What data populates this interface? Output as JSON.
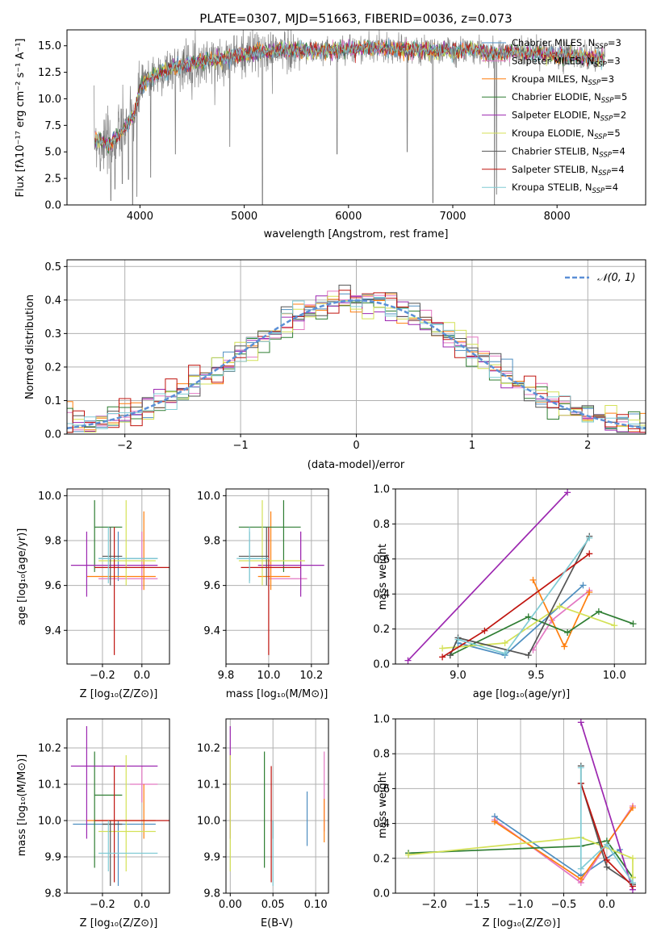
{
  "colors": {
    "chabrier_miles": "#4d8ec0",
    "salpeter_miles": "#e377c2",
    "kroupa_miles": "#ff7f0e",
    "chabrier_elodie": "#2e7d32",
    "salpeter_elodie": "#9c27b0",
    "kroupa_elodie": "#d4e157",
    "chabrier_stelib": "#555555",
    "salpeter_stelib": "#c0140f",
    "kroupa_stelib": "#80cbd4",
    "gaussian": "#5b8fd6",
    "data": "#808080",
    "grid": "#b0b0b0"
  },
  "chart_data": [
    {
      "id": "spectrum",
      "type": "line",
      "title": "PLATE=0307, MJD=51663, FIBERID=0036, z=0.073",
      "xlabel": "wavelength [Angstrom, rest frame]",
      "ylabel": "Flux [fλ10⁻¹⁷ erg cm⁻² s⁻¹ A⁻¹]",
      "xlim": [
        3300,
        8850
      ],
      "ylim": [
        0,
        16.5
      ],
      "xticks": [
        4000,
        5000,
        6000,
        7000,
        8000
      ],
      "yticks": [
        0.0,
        2.5,
        5.0,
        7.5,
        10.0,
        12.5,
        15.0
      ],
      "grid": false,
      "legend": "right",
      "series": [
        {
          "name": "Chabrier MILES, N_SSP=3"
        },
        {
          "name": "Salpeter MILES, N_SSP=3"
        },
        {
          "name": "Kroupa MILES, N_SSP=3"
        },
        {
          "name": "Chabrier ELODIE, N_SSP=5"
        },
        {
          "name": "Salpeter ELODIE, N_SSP=2"
        },
        {
          "name": "Kroupa ELODIE, N_SSP=5"
        },
        {
          "name": "Chabrier STELIB, N_SSP=4"
        },
        {
          "name": "Salpeter STELIB, N_SSP=4"
        },
        {
          "name": "Kroupa STELIB, N_SSP=4"
        }
      ],
      "continuum": [
        [
          3600,
          6.2
        ],
        [
          3700,
          5.5
        ],
        [
          3850,
          7.2
        ],
        [
          3950,
          8.6
        ],
        [
          4000,
          11.0
        ],
        [
          4100,
          12.0
        ],
        [
          4300,
          12.9
        ],
        [
          4500,
          13.4
        ],
        [
          4800,
          13.8
        ],
        [
          5100,
          14.4
        ],
        [
          5400,
          14.6
        ],
        [
          5700,
          14.5
        ],
        [
          6000,
          14.7
        ],
        [
          6300,
          14.8
        ],
        [
          6600,
          14.6
        ],
        [
          6900,
          14.5
        ],
        [
          7200,
          14.6
        ],
        [
          7400,
          14.2
        ],
        [
          7600,
          14.4
        ],
        [
          7900,
          14.2
        ],
        [
          8200,
          14.0
        ],
        [
          8450,
          13.8
        ]
      ],
      "features": [
        [
          3620,
          3.2
        ],
        [
          3720,
          0.4
        ],
        [
          3760,
          1.5
        ],
        [
          3830,
          2.0
        ],
        [
          3890,
          2.4
        ],
        [
          3930,
          0.0
        ],
        [
          3970,
          0.8
        ],
        [
          4102,
          2.6
        ],
        [
          4340,
          4.8
        ],
        [
          4861,
          5.5
        ],
        [
          5175,
          0.0
        ],
        [
          5890,
          4.8
        ],
        [
          6563,
          5.0
        ],
        [
          6810,
          0.2
        ],
        [
          7400,
          0.0
        ],
        [
          7420,
          1.0
        ]
      ]
    },
    {
      "id": "residuals",
      "type": "histogram",
      "xlabel": "(data-model)/error",
      "ylabel": "Normed distribution",
      "xlim": [
        -2.5,
        2.5
      ],
      "ylim": [
        0,
        0.52
      ],
      "xticks": [
        -2,
        -1,
        0,
        1,
        2
      ],
      "yticks": [
        0.0,
        0.1,
        0.2,
        0.3,
        0.4,
        0.5
      ],
      "grid": true,
      "legend": "top-right",
      "gaussian_label": "𝒩(0, 1)"
    },
    {
      "id": "age-vs-Z",
      "type": "errorbar",
      "xlabel": "Z [log₁₀(Z/Z⊙)]",
      "ylabel": "age  [log₁₀(age/yr)]",
      "xlim": [
        -0.38,
        0.14
      ],
      "ylim": [
        9.25,
        10.03
      ],
      "xticks": [
        -0.2,
        0.0
      ],
      "yticks": [
        9.4,
        9.6,
        9.8,
        10.0
      ],
      "points": [
        {
          "c": "chabrier_miles",
          "x": -0.12,
          "y": 9.72,
          "xl": -0.22,
          "xh": 0.08,
          "yl": 9.62,
          "yh": 9.84
        },
        {
          "c": "salpeter_miles",
          "x": 0.0,
          "y": 9.63,
          "xl": -0.22,
          "xh": 0.08,
          "yl": 9.58,
          "yh": 9.84
        },
        {
          "c": "kroupa_miles",
          "x": 0.01,
          "y": 9.64,
          "xl": -0.28,
          "xh": 0.07,
          "yl": 9.58,
          "yh": 9.93
        },
        {
          "c": "chabrier_elodie",
          "x": -0.24,
          "y": 9.86,
          "xl": -0.24,
          "xh": -0.1,
          "yl": 9.66,
          "yh": 9.98
        },
        {
          "c": "salpeter_elodie",
          "x": -0.28,
          "y": 9.69,
          "xl": -0.36,
          "xh": 0.08,
          "yl": 9.55,
          "yh": 9.84
        },
        {
          "c": "kroupa_elodie",
          "x": -0.08,
          "y": 9.71,
          "xl": -0.22,
          "xh": 0.07,
          "yl": 9.6,
          "yh": 9.98
        },
        {
          "c": "chabrier_stelib",
          "x": -0.16,
          "y": 9.73,
          "xl": -0.2,
          "xh": -0.1,
          "yl": 9.6,
          "yh": 9.86
        },
        {
          "c": "salpeter_stelib",
          "x": -0.14,
          "y": 9.68,
          "xl": -0.24,
          "xh": 0.14,
          "yl": 9.29,
          "yh": 9.86
        },
        {
          "c": "kroupa_stelib",
          "x": -0.17,
          "y": 9.72,
          "xl": -0.22,
          "xh": 0.08,
          "yl": 9.61,
          "yh": 9.86
        }
      ]
    },
    {
      "id": "age-vs-mass",
      "type": "errorbar",
      "xlabel": "mass [log₁₀(M/M⊙)]",
      "ylabel": "",
      "xlim": [
        9.8,
        10.28
      ],
      "ylim": [
        9.25,
        10.03
      ],
      "xticks": [
        9.8,
        10.0,
        10.2
      ],
      "yticks": [
        9.4,
        9.6,
        9.8,
        10.0
      ],
      "points": [
        {
          "c": "chabrier_miles",
          "x": 9.91,
          "y": 9.72,
          "xl": 9.86,
          "xh": 10.0,
          "yl": 9.62,
          "yh": 9.84
        },
        {
          "c": "salpeter_miles",
          "x": 10.15,
          "y": 9.63,
          "xl": 10.0,
          "xh": 10.18,
          "yl": 9.58,
          "yh": 9.84
        },
        {
          "c": "kroupa_miles",
          "x": 10.01,
          "y": 9.64,
          "xl": 9.95,
          "xh": 10.1,
          "yl": 9.58,
          "yh": 9.93
        },
        {
          "c": "chabrier_elodie",
          "x": 10.07,
          "y": 9.86,
          "xl": 9.86,
          "xh": 10.15,
          "yl": 9.66,
          "yh": 9.98
        },
        {
          "c": "salpeter_elodie",
          "x": 10.15,
          "y": 9.69,
          "xl": 9.95,
          "xh": 10.26,
          "yl": 9.55,
          "yh": 9.84
        },
        {
          "c": "kroupa_elodie",
          "x": 9.97,
          "y": 9.71,
          "xl": 9.86,
          "xh": 10.17,
          "yl": 9.6,
          "yh": 9.98
        },
        {
          "c": "chabrier_stelib",
          "x": 9.99,
          "y": 9.73,
          "xl": 9.86,
          "xh": 10.0,
          "yl": 9.6,
          "yh": 9.86
        },
        {
          "c": "salpeter_stelib",
          "x": 10.0,
          "y": 9.68,
          "xl": 9.87,
          "xh": 10.15,
          "yl": 9.29,
          "yh": 9.86
        },
        {
          "c": "kroupa_stelib",
          "x": 9.91,
          "y": 9.72,
          "xl": 9.85,
          "xh": 10.0,
          "yl": 9.61,
          "yh": 9.86
        }
      ]
    },
    {
      "id": "weight-vs-age",
      "type": "line",
      "xlabel": "age  [log₁₀(age/yr)]",
      "ylabel": "mass weight",
      "xlim": [
        8.6,
        10.2
      ],
      "ylim": [
        0,
        1.0
      ],
      "xticks": [
        9.0,
        9.5,
        10.0
      ],
      "yticks": [
        0.0,
        0.2,
        0.4,
        0.6,
        0.8,
        1.0
      ],
      "grid": true,
      "series": [
        {
          "c": "chabrier_miles",
          "x": [
            9.0,
            9.3,
            9.8
          ],
          "y": [
            0.12,
            0.05,
            0.45
          ]
        },
        {
          "c": "salpeter_miles",
          "x": [
            9.48,
            9.6,
            9.84
          ],
          "y": [
            0.08,
            0.25,
            0.42
          ]
        },
        {
          "c": "kroupa_miles",
          "x": [
            9.48,
            9.68,
            9.84
          ],
          "y": [
            0.48,
            0.1,
            0.41
          ]
        },
        {
          "c": "chabrier_elodie",
          "x": [
            8.95,
            9.45,
            9.7,
            9.9,
            10.12
          ],
          "y": [
            0.05,
            0.27,
            0.18,
            0.3,
            0.23
          ]
        },
        {
          "c": "salpeter_elodie",
          "x": [
            8.68,
            9.7
          ],
          "y": [
            0.02,
            0.98
          ]
        },
        {
          "c": "kroupa_elodie",
          "x": [
            8.9,
            9.3,
            9.65,
            10.0
          ],
          "y": [
            0.09,
            0.12,
            0.33,
            0.22
          ]
        },
        {
          "c": "chabrier_stelib",
          "x": [
            8.95,
            9.0,
            9.45,
            9.84
          ],
          "y": [
            0.05,
            0.15,
            0.05,
            0.73
          ]
        },
        {
          "c": "salpeter_stelib",
          "x": [
            8.9,
            9.17,
            9.84
          ],
          "y": [
            0.04,
            0.19,
            0.63
          ]
        },
        {
          "c": "kroupa_stelib",
          "x": [
            9.0,
            9.3,
            9.84
          ],
          "y": [
            0.14,
            0.06,
            0.72
          ]
        }
      ]
    },
    {
      "id": "mass-vs-Z",
      "type": "errorbar",
      "xlabel": "Z [log₁₀(Z/Z⊙)]",
      "ylabel": "mass [log₁₀(M/M⊙)]",
      "xlim": [
        -0.38,
        0.14
      ],
      "ylim": [
        9.8,
        10.28
      ],
      "xticks": [
        -0.2,
        0.0
      ],
      "yticks": [
        9.8,
        9.9,
        10.0,
        10.1,
        10.2
      ],
      "points": [
        {
          "c": "chabrier_miles",
          "x": -0.12,
          "y": 9.99,
          "xl": -0.35,
          "xh": 0.07,
          "yl": 9.82,
          "yh": 10.0
        },
        {
          "c": "salpeter_miles",
          "x": 0.0,
          "y": 10.1,
          "xl": -0.06,
          "xh": 0.08,
          "yl": 10.05,
          "yh": 10.15
        },
        {
          "c": "kroupa_miles",
          "x": 0.01,
          "y": 10.0,
          "xl": -0.28,
          "xh": 0.07,
          "yl": 9.95,
          "yh": 10.1
        },
        {
          "c": "chabrier_elodie",
          "x": -0.24,
          "y": 10.07,
          "xl": -0.24,
          "xh": -0.1,
          "yl": 9.87,
          "yh": 10.19
        },
        {
          "c": "salpeter_elodie",
          "x": -0.28,
          "y": 10.15,
          "xl": -0.36,
          "xh": 0.08,
          "yl": 9.95,
          "yh": 10.26
        },
        {
          "c": "kroupa_elodie",
          "x": -0.08,
          "y": 9.97,
          "xl": -0.22,
          "xh": 0.07,
          "yl": 9.86,
          "yh": 10.18
        },
        {
          "c": "chabrier_stelib",
          "x": -0.16,
          "y": 9.99,
          "xl": -0.2,
          "xh": -0.1,
          "yl": 9.82,
          "yh": 10.0
        },
        {
          "c": "salpeter_stelib",
          "x": -0.14,
          "y": 10.0,
          "xl": -0.24,
          "xh": 0.14,
          "yl": 9.83,
          "yh": 10.15
        },
        {
          "c": "kroupa_stelib",
          "x": -0.17,
          "y": 9.91,
          "xl": -0.22,
          "xh": 0.08,
          "yl": 9.86,
          "yh": 10.0
        }
      ]
    },
    {
      "id": "mass-vs-ebv",
      "type": "errorbar",
      "xlabel": "E(B-V)",
      "ylabel": "",
      "xlim": [
        -0.005,
        0.115
      ],
      "ylim": [
        9.8,
        10.28
      ],
      "xticks": [
        0.0,
        0.05,
        0.1
      ],
      "yticks": [
        9.8,
        9.9,
        10.0,
        10.1,
        10.2
      ],
      "points": [
        {
          "c": "chabrier_miles",
          "x": 0.09,
          "y": 9.99,
          "yl": 9.93,
          "yh": 10.08
        },
        {
          "c": "salpeter_miles",
          "x": 0.11,
          "y": 10.1,
          "yl": 9.97,
          "yh": 10.19
        },
        {
          "c": "kroupa_miles",
          "x": 0.11,
          "y": 10.0,
          "yl": 9.94,
          "yh": 10.06
        },
        {
          "c": "chabrier_elodie",
          "x": 0.04,
          "y": 10.07,
          "yl": 9.87,
          "yh": 10.19
        },
        {
          "c": "salpeter_elodie",
          "x": 0.0,
          "y": 10.15,
          "yl": 9.95,
          "yh": 10.26
        },
        {
          "c": "kroupa_elodie",
          "x": 0.0,
          "y": 9.97,
          "yl": 9.86,
          "yh": 10.18
        },
        {
          "c": "chabrier_stelib",
          "x": 0.05,
          "y": 9.99,
          "yl": 9.95,
          "yh": 10.0
        },
        {
          "c": "salpeter_stelib",
          "x": 0.048,
          "y": 10.0,
          "yl": 9.83,
          "yh": 10.15
        },
        {
          "c": "kroupa_stelib",
          "x": 0.05,
          "y": 9.91,
          "yl": 9.82,
          "yh": 10.0
        }
      ]
    },
    {
      "id": "weight-vs-Z",
      "type": "line",
      "xlabel": "Z [log₁₀(Z/Z⊙)]",
      "ylabel": "mass weight",
      "xlim": [
        -2.45,
        0.45
      ],
      "ylim": [
        0,
        1.0
      ],
      "xticks": [
        -2.0,
        -1.5,
        -1.0,
        -0.5,
        0.0
      ],
      "yticks": [
        0.0,
        0.2,
        0.4,
        0.6,
        0.8,
        1.0
      ],
      "grid": true,
      "series": [
        {
          "c": "chabrier_miles",
          "x": [
            -1.3,
            -0.3,
            0.15
          ],
          "y": [
            0.44,
            0.1,
            0.25
          ]
        },
        {
          "c": "salpeter_miles",
          "x": [
            -1.3,
            -0.3,
            0.3
          ],
          "y": [
            0.42,
            0.06,
            0.5
          ]
        },
        {
          "c": "kroupa_miles",
          "x": [
            -1.3,
            -0.3,
            0.3
          ],
          "y": [
            0.41,
            0.08,
            0.49
          ]
        },
        {
          "c": "chabrier_elodie",
          "x": [
            -2.3,
            -0.3,
            0.0,
            0.3
          ],
          "y": [
            0.23,
            0.27,
            0.3,
            0.09
          ]
        },
        {
          "c": "salpeter_elodie",
          "x": [
            -0.3,
            0.3
          ],
          "y": [
            0.98,
            0.02
          ]
        },
        {
          "c": "kroupa_elodie",
          "x": [
            -2.3,
            -0.3,
            0.3,
            0.3
          ],
          "y": [
            0.22,
            0.32,
            0.2,
            0.09
          ]
        },
        {
          "c": "chabrier_stelib",
          "x": [
            -0.3,
            -0.3,
            0.0,
            0.3
          ],
          "y": [
            0.73,
            0.63,
            0.15,
            0.05
          ]
        },
        {
          "c": "salpeter_stelib",
          "x": [
            -0.3,
            0.0,
            0.3
          ],
          "y": [
            0.63,
            0.19,
            0.04
          ]
        },
        {
          "c": "kroupa_stelib",
          "x": [
            -0.3,
            -0.3,
            0.0,
            0.3
          ],
          "y": [
            0.72,
            0.14,
            0.28,
            0.06
          ]
        }
      ]
    }
  ]
}
